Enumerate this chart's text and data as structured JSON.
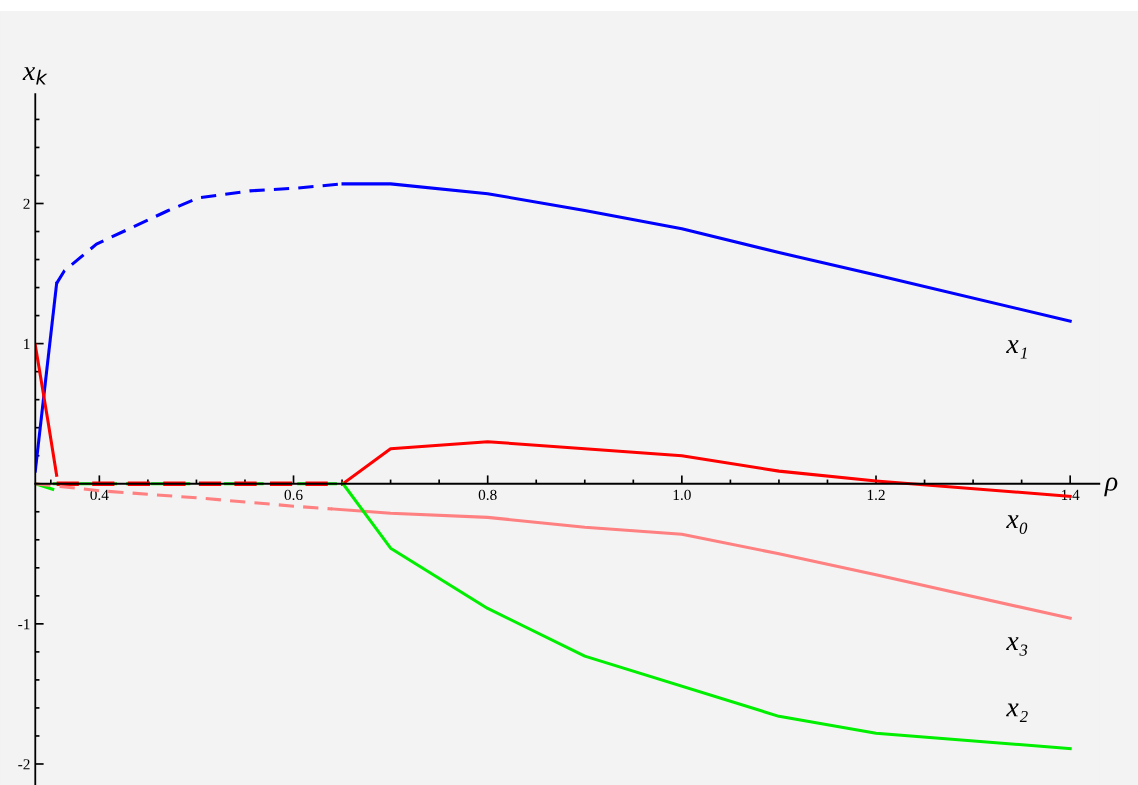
{
  "chart_data": {
    "type": "line",
    "xlabel": "ρ",
    "ylabel": "x$_{k}$",
    "xlim": [
      0.334,
      1.43
    ],
    "ylim": [
      -2.15,
      2.78
    ],
    "xticks": [
      0.4,
      0.6,
      0.8,
      {
        "value": 1.0,
        "label": "1.0"
      },
      1.2,
      1.4
    ],
    "yticks": [
      -2,
      -1,
      1,
      2
    ],
    "grid": false,
    "marker": "none",
    "series": [
      {
        "color": "#0000ff",
        "line_style": "solid",
        "x": [
          0.334,
          0.356
        ],
        "values": [
          0.09,
          1.43
        ]
      },
      {
        "color": "#0000ff",
        "line_style": "dashed",
        "x": [
          0.356,
          0.364,
          0.397,
          0.434,
          0.471,
          0.502,
          0.555,
          0.603,
          0.651
        ],
        "values": [
          1.43,
          1.52,
          1.71,
          1.83,
          1.95,
          2.04,
          2.09,
          2.11,
          2.14
        ]
      },
      {
        "name": "x₁",
        "color": "#0000ff",
        "line_style": "solid",
        "x": [
          0.651,
          0.7,
          0.8,
          0.9,
          1.0,
          1.1,
          1.2,
          1.4
        ],
        "values": [
          2.14,
          2.14,
          2.07,
          1.95,
          1.82,
          1.65,
          1.49,
          1.16
        ]
      },
      {
        "color": "#ff0000",
        "line_style": "solid",
        "x": [
          0.334,
          0.347,
          0.356
        ],
        "values": [
          0.99,
          0.45,
          0.06
        ]
      },
      {
        "color": "#00ee00",
        "line_style": "solid",
        "x": [
          0.334,
          0.352
        ],
        "values": [
          0,
          -0.04
        ]
      },
      {
        "color": "#00ee00",
        "line_style": "dashed",
        "x": [
          0.352,
          0.651
        ],
        "values": [
          0,
          0
        ]
      },
      {
        "color": "#ff0000",
        "line_style": "dashed",
        "x": [
          0.356,
          0.651
        ],
        "values": [
          0,
          0
        ]
      },
      {
        "name": "x₀",
        "color": "#ff0000",
        "line_style": "solid",
        "x": [
          0.651,
          0.7,
          0.8,
          0.9,
          1.0,
          1.1,
          1.2,
          1.4
        ],
        "values": [
          0,
          0.25,
          0.3,
          0.25,
          0.2,
          0.09,
          0.02,
          -0.09
        ]
      },
      {
        "color": "#ff8080",
        "line_style": "dashed",
        "x": [
          0.334,
          0.4,
          0.5,
          0.6,
          0.64
        ],
        "values": [
          0,
          -0.05,
          -0.1,
          -0.16,
          -0.18
        ]
      },
      {
        "name": "x₃",
        "color": "#ff8080",
        "line_style": "solid",
        "x": [
          0.64,
          0.7,
          0.8,
          0.9,
          1.0,
          1.1,
          1.2,
          1.4
        ],
        "values": [
          -0.18,
          -0.21,
          -0.24,
          -0.31,
          -0.36,
          -0.5,
          -0.65,
          -0.96
        ]
      },
      {
        "name": "x₂",
        "color": "#00ee00",
        "line_style": "solid",
        "x": [
          0.651,
          0.7,
          0.8,
          0.9,
          1.1,
          1.2,
          1.4
        ],
        "values": [
          0,
          -0.46,
          -0.89,
          -1.23,
          -1.66,
          -1.78,
          -1.89
        ]
      }
    ]
  }
}
